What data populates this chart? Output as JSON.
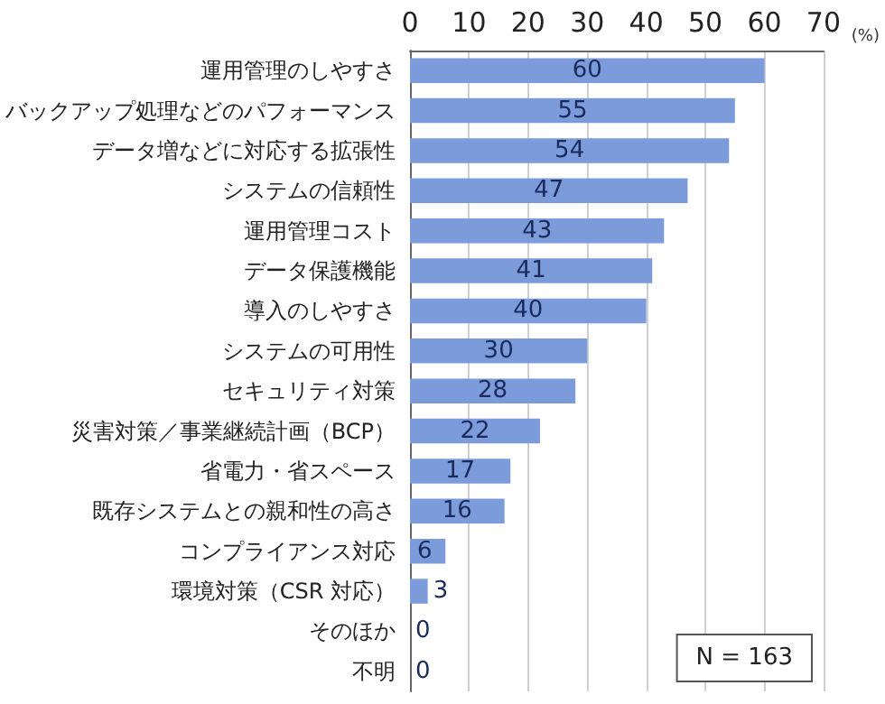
{
  "chart_data": {
    "type": "bar",
    "orientation": "horizontal",
    "categories": [
      "運用管理のしやすさ",
      "バックアップ処理などのパフォーマンス",
      "データ増などに対応する拡張性",
      "システムの信頼性",
      "運用管理コスト",
      "データ保護機能",
      "導入のしやすさ",
      "システムの可用性",
      "セキュリティ対策",
      "災害対策／事業継続計画（BCP）",
      "省電力・省スペース",
      "既存システムとの親和性の高さ",
      "コンプライアンス対応",
      "環境対策（CSR 対応）",
      "そのほか",
      "不明"
    ],
    "values": [
      60,
      55,
      54,
      47,
      43,
      41,
      40,
      30,
      28,
      22,
      17,
      16,
      6,
      3,
      0,
      0
    ],
    "color": "#7b9bdb",
    "xlim": [
      0,
      70
    ],
    "xticks": [
      0,
      10,
      20,
      30,
      40,
      50,
      60,
      70
    ],
    "xlabel": "(%)",
    "grid": "x",
    "data_labels": true,
    "annotations": [
      "N = 163"
    ]
  }
}
